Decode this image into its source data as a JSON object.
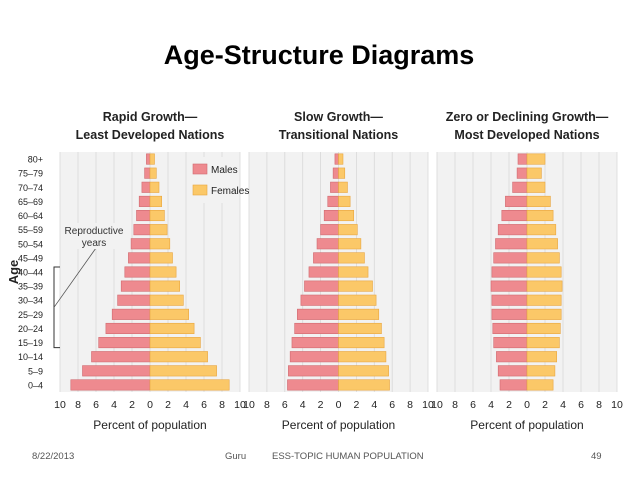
{
  "slide": {
    "title": "Age-Structure Diagrams",
    "footer_date": "8/22/2013",
    "footer_author": "Guru",
    "footer_topic": "ESS-TOPIC HUMAN POPULATION",
    "footer_page": "49"
  },
  "colors": {
    "males": "#ee8a8f",
    "males_edge": "#d06a70",
    "females": "#fbc868",
    "females_edge": "#e8a640",
    "panel_bg": "#f2f2f2",
    "grid": "#ffffff"
  },
  "chart_data": {
    "type": "bar",
    "orientation": "horizontal-pyramid",
    "age_groups": [
      "0-4",
      "5-9",
      "10-14",
      "15-19",
      "20-24",
      "25-29",
      "30-34",
      "35-39",
      "40-44",
      "45-49",
      "50-54",
      "55-59",
      "60-64",
      "65-69",
      "70-74",
      "75-79",
      "80+"
    ],
    "ylabel": "Age",
    "xlabel": "Percent of population",
    "xticks": [
      "10",
      "8",
      "6",
      "4",
      "2",
      "0",
      "2",
      "4",
      "6",
      "8",
      "10"
    ],
    "xlim": [
      -10,
      10
    ],
    "legend": {
      "placement": "top-right of first panel",
      "entries": [
        "Males",
        "Females"
      ]
    },
    "annotation": {
      "text_line1": "Reproductive",
      "text_line2": "years",
      "bracket_from": "15-19",
      "bracket_to": "40-44"
    },
    "panels": [
      {
        "title_line1": "Rapid Growth—",
        "title_line2": "Least Developed Nations",
        "males": [
          8.8,
          7.5,
          6.5,
          5.7,
          4.9,
          4.2,
          3.6,
          3.2,
          2.8,
          2.4,
          2.1,
          1.8,
          1.5,
          1.2,
          0.9,
          0.6,
          0.4
        ],
        "females": [
          8.8,
          7.4,
          6.4,
          5.6,
          4.9,
          4.3,
          3.7,
          3.3,
          2.9,
          2.5,
          2.2,
          1.9,
          1.6,
          1.3,
          1.0,
          0.7,
          0.5
        ]
      },
      {
        "title_line1": "Slow Growth—",
        "title_line2": "Transitional Nations",
        "males": [
          5.7,
          5.6,
          5.4,
          5.2,
          4.9,
          4.6,
          4.2,
          3.8,
          3.3,
          2.8,
          2.4,
          2.0,
          1.6,
          1.2,
          0.9,
          0.6,
          0.4
        ],
        "females": [
          5.7,
          5.6,
          5.3,
          5.1,
          4.8,
          4.5,
          4.2,
          3.8,
          3.3,
          2.9,
          2.5,
          2.1,
          1.7,
          1.3,
          1.0,
          0.7,
          0.5
        ]
      },
      {
        "title_line1": "Zero or Declining Growth—",
        "title_line2": "Most Developed Nations",
        "males": [
          3.0,
          3.2,
          3.4,
          3.7,
          3.8,
          3.9,
          3.9,
          4.0,
          3.9,
          3.7,
          3.5,
          3.2,
          2.8,
          2.4,
          1.6,
          1.1,
          1.0
        ],
        "females": [
          2.9,
          3.1,
          3.3,
          3.6,
          3.7,
          3.8,
          3.8,
          3.9,
          3.8,
          3.6,
          3.4,
          3.2,
          2.9,
          2.6,
          2.0,
          1.6,
          2.0
        ]
      }
    ]
  }
}
